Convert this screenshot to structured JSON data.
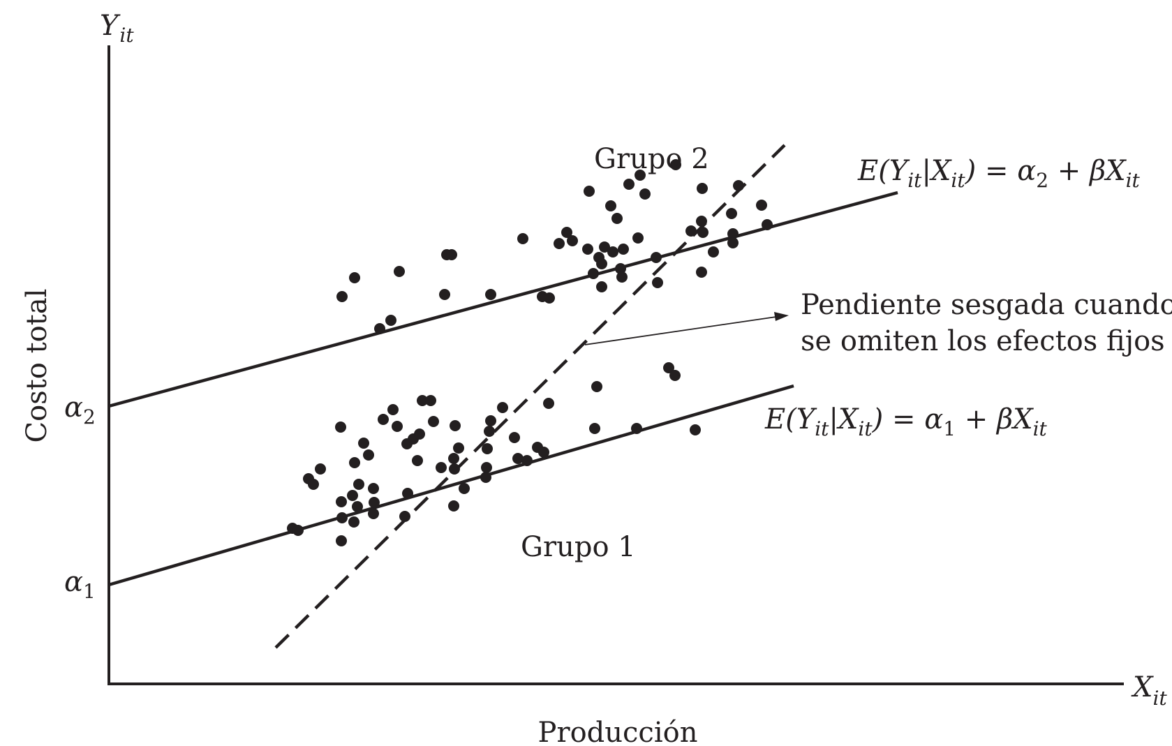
{
  "axes": {
    "y_label": "Y",
    "y_sub": "it",
    "x_label": "X",
    "x_sub": "it",
    "y_title": "Costo total",
    "x_title": "Producción"
  },
  "intercepts": {
    "alpha2": {
      "symbol": "α",
      "sub": "2"
    },
    "alpha1": {
      "symbol": "α",
      "sub": "1"
    }
  },
  "groups": {
    "group2": "Grupo 2",
    "group1": "Grupo 1"
  },
  "equations": {
    "group2": {
      "E": "E(",
      "Y": "Y",
      "it": "it",
      "bar": "|",
      "X": "X",
      "close_eq": ") = ",
      "alpha": "α",
      "alpha_sub": "2",
      "plus": " + ",
      "beta": "β",
      "X2": "X",
      "it2": "it"
    },
    "group1": {
      "E": "E(",
      "Y": "Y",
      "it": "it",
      "bar": "|",
      "X": "X",
      "close_eq": ") = ",
      "alpha": "α",
      "alpha_sub": "1",
      "plus": " + ",
      "beta": "β",
      "X2": "X",
      "it2": "it"
    }
  },
  "annotation": {
    "line1": "Pendiente sesgada cuando",
    "line2": "se omiten los efectos fijos"
  },
  "colors": {
    "ink": "#231f20",
    "background": "#ffffff"
  },
  "group2_points": [
    [
      490,
      425
    ],
    [
      508,
      398
    ],
    [
      572,
      389
    ],
    [
      544,
      471
    ],
    [
      560,
      459
    ],
    [
      637,
      422
    ],
    [
      640,
      365
    ],
    [
      647,
      365
    ],
    [
      703,
      422
    ],
    [
      749,
      342
    ],
    [
      777,
      425
    ],
    [
      787,
      427
    ],
    [
      801,
      349
    ],
    [
      812,
      333
    ],
    [
      820,
      345
    ],
    [
      842,
      357
    ],
    [
      844,
      274
    ],
    [
      850,
      392
    ],
    [
      858,
      369
    ],
    [
      862,
      378
    ],
    [
      862,
      411
    ],
    [
      866,
      354
    ],
    [
      875,
      295
    ],
    [
      878,
      361
    ],
    [
      884,
      313
    ],
    [
      889,
      385
    ],
    [
      891,
      397
    ],
    [
      893,
      357
    ],
    [
      901,
      264
    ],
    [
      914,
      341
    ],
    [
      917,
      251
    ],
    [
      924,
      278
    ],
    [
      940,
      369
    ],
    [
      942,
      405
    ],
    [
      968,
      236
    ],
    [
      990,
      331
    ],
    [
      1005,
      317
    ],
    [
      1006,
      270
    ],
    [
      1007,
      333
    ],
    [
      1005,
      390
    ],
    [
      1022,
      361
    ],
    [
      1048,
      306
    ],
    [
      1050,
      335
    ],
    [
      1050,
      348
    ],
    [
      1058,
      266
    ],
    [
      1091,
      294
    ],
    [
      1099,
      322
    ]
  ],
  "group1_points": [
    [
      419,
      757
    ],
    [
      427,
      760
    ],
    [
      442,
      686
    ],
    [
      449,
      694
    ],
    [
      459,
      672
    ],
    [
      488,
      612
    ],
    [
      489,
      719
    ],
    [
      490,
      742
    ],
    [
      489,
      775
    ],
    [
      505,
      710
    ],
    [
      507,
      748
    ],
    [
      508,
      663
    ],
    [
      512,
      726
    ],
    [
      514,
      694
    ],
    [
      521,
      635
    ],
    [
      528,
      652
    ],
    [
      535,
      700
    ],
    [
      536,
      720
    ],
    [
      535,
      736
    ],
    [
      549,
      601
    ],
    [
      563,
      587
    ],
    [
      569,
      611
    ],
    [
      580,
      740
    ],
    [
      584,
      707
    ],
    [
      583,
      636
    ],
    [
      592,
      629
    ],
    [
      598,
      660
    ],
    [
      601,
      622
    ],
    [
      605,
      574
    ],
    [
      617,
      574
    ],
    [
      621,
      604
    ],
    [
      632,
      670
    ],
    [
      650,
      725
    ],
    [
      652,
      610
    ],
    [
      651,
      672
    ],
    [
      650,
      657
    ],
    [
      657,
      642
    ],
    [
      665,
      700
    ],
    [
      698,
      643
    ],
    [
      696,
      684
    ],
    [
      697,
      670
    ],
    [
      701,
      618
    ],
    [
      703,
      603
    ],
    [
      720,
      584
    ],
    [
      737,
      627
    ],
    [
      742,
      657
    ],
    [
      755,
      660
    ],
    [
      770,
      641
    ],
    [
      779,
      648
    ],
    [
      786,
      578
    ],
    [
      852,
      614
    ],
    [
      855,
      554
    ],
    [
      912,
      614
    ],
    [
      958,
      527
    ],
    [
      967,
      538
    ],
    [
      996,
      616
    ]
  ]
}
